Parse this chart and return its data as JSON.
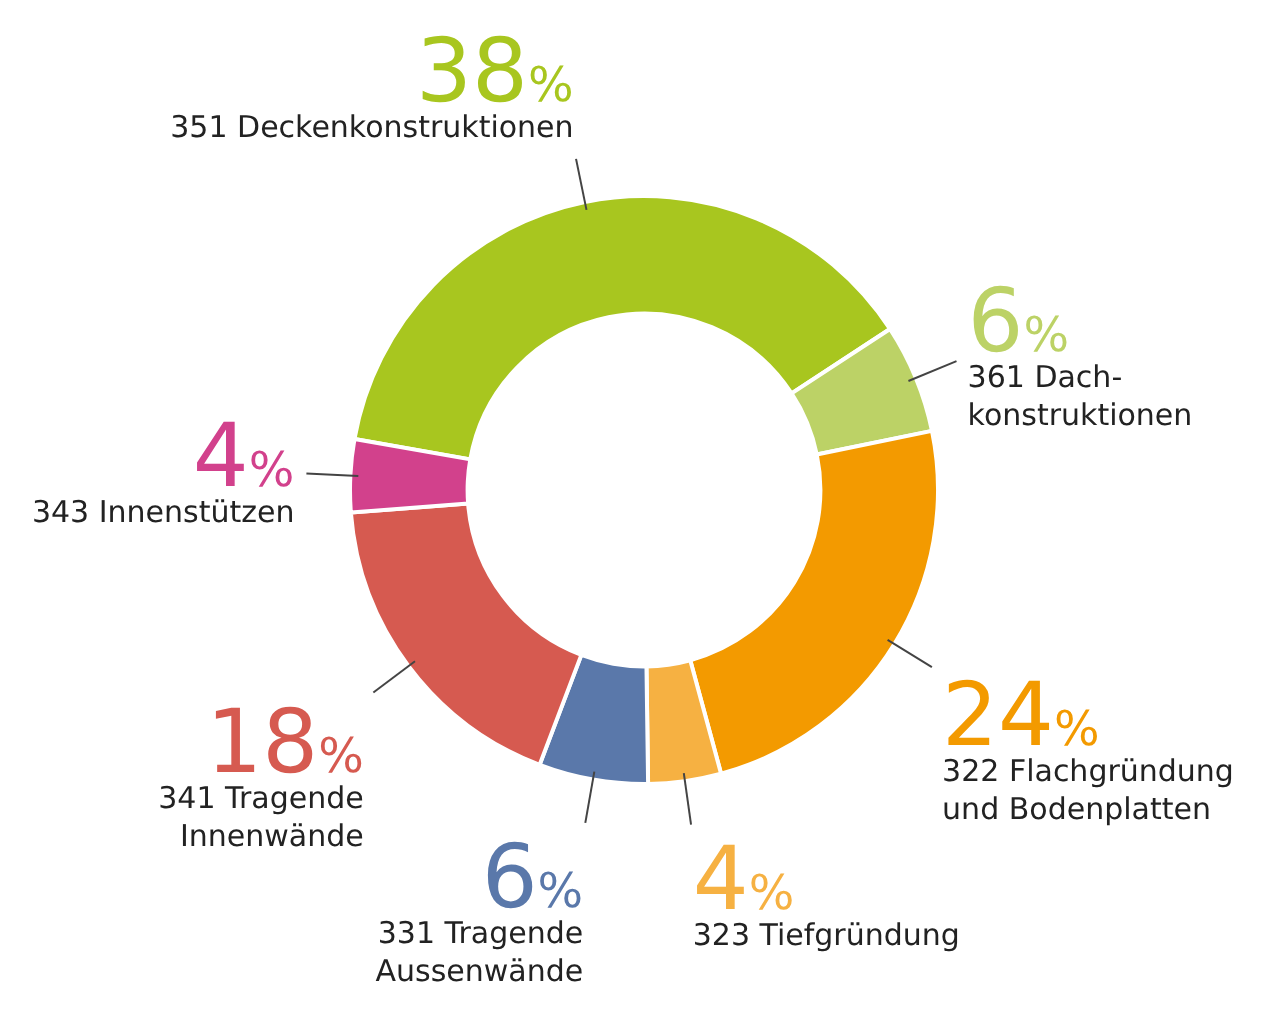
{
  "chart_data": {
    "type": "donut",
    "categories": [
      "351 Deckenkonstruktionen",
      "361 Dach-\nkonstruktionen",
      "322 Flachgründung\nund Bodenplatten",
      "323 Tiefgründung",
      "331 Tragende\nAussenwände",
      "341 Tragende\nInnenwände",
      "343 Innenstützen"
    ],
    "values": [
      38,
      6,
      24,
      4,
      6,
      18,
      4
    ],
    "value_labels": [
      "38%",
      "6%",
      "24%",
      "4%",
      "6%",
      "18%",
      "4%"
    ],
    "colors": [
      "#a8c61f",
      "#bcd266",
      "#f39a00",
      "#f6b142",
      "#5a78aa",
      "#d65a50",
      "#d2418c"
    ],
    "legend": false
  }
}
